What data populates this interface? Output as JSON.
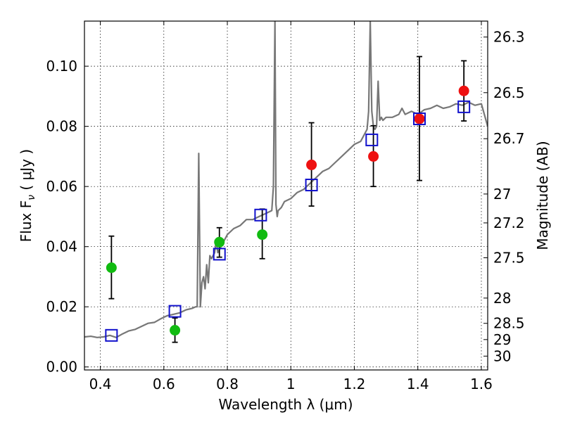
{
  "chart_data": {
    "type": "scatter",
    "xlabel": "Wavelength  λ (μm)",
    "ylabel": "Flux  F",
    "ylabel_sub": "ν",
    "ylabel_unit": "  ( μJy )",
    "y2label": "Magnitude (AB)",
    "xlim": [
      0.35,
      1.62
    ],
    "ylim": [
      -0.001,
      0.115
    ],
    "grid": true,
    "x_ticks": [
      0.4,
      0.6,
      0.8,
      1.0,
      1.2,
      1.4,
      1.6
    ],
    "x_tick_labels": [
      "0.4",
      "0.6",
      "0.8",
      "1",
      "1.2",
      "1.4",
      "1.6"
    ],
    "y_ticks": [
      0.0,
      0.02,
      0.04,
      0.06,
      0.08,
      0.1
    ],
    "y_tick_labels": [
      "0.00",
      "0.02",
      "0.04",
      "0.06",
      "0.08",
      "0.10"
    ],
    "y2_ticks": [
      {
        "label": "26.3",
        "flux": 0.1097
      },
      {
        "label": "26.5",
        "flux": 0.0912
      },
      {
        "label": "26.7",
        "flux": 0.0759
      },
      {
        "label": "27",
        "flux": 0.0575
      },
      {
        "label": "27.2",
        "flux": 0.0479
      },
      {
        "label": "27.5",
        "flux": 0.0363
      },
      {
        "label": "28",
        "flux": 0.0229
      },
      {
        "label": "28.5",
        "flux": 0.0145
      },
      {
        "label": "29",
        "flux": 0.0091
      },
      {
        "label": "30",
        "flux": 0.0036
      }
    ],
    "series": [
      {
        "kind": "line",
        "color": "#777777",
        "x": [
          0.35,
          0.37,
          0.39,
          0.41,
          0.43,
          0.45,
          0.47,
          0.49,
          0.51,
          0.53,
          0.55,
          0.57,
          0.59,
          0.61,
          0.63,
          0.65,
          0.67,
          0.69,
          0.7,
          0.705,
          0.71,
          0.715,
          0.72,
          0.725,
          0.73,
          0.735,
          0.74,
          0.745,
          0.75,
          0.76,
          0.765,
          0.77,
          0.78,
          0.79,
          0.8,
          0.82,
          0.84,
          0.86,
          0.88,
          0.9,
          0.92,
          0.94,
          0.945,
          0.95,
          0.953,
          0.957,
          0.96,
          0.97,
          0.98,
          1.0,
          1.02,
          1.04,
          1.06,
          1.08,
          1.1,
          1.12,
          1.14,
          1.16,
          1.18,
          1.2,
          1.22,
          1.24,
          1.245,
          1.25,
          1.255,
          1.26,
          1.265,
          1.27,
          1.275,
          1.28,
          1.285,
          1.29,
          1.3,
          1.32,
          1.34,
          1.35,
          1.36,
          1.38,
          1.4,
          1.42,
          1.44,
          1.46,
          1.48,
          1.5,
          1.52,
          1.54,
          1.56,
          1.58,
          1.6,
          1.62
        ],
        "y": [
          0.01,
          0.0102,
          0.0098,
          0.01,
          0.0105,
          0.0098,
          0.011,
          0.012,
          0.0125,
          0.0135,
          0.0145,
          0.0148,
          0.016,
          0.017,
          0.0175,
          0.018,
          0.019,
          0.0195,
          0.02,
          0.02,
          0.071,
          0.02,
          0.028,
          0.03,
          0.026,
          0.034,
          0.028,
          0.037,
          0.036,
          0.038,
          0.042,
          0.038,
          0.04,
          0.042,
          0.044,
          0.046,
          0.047,
          0.049,
          0.049,
          0.05,
          0.051,
          0.052,
          0.06,
          0.115,
          0.054,
          0.05,
          0.052,
          0.053,
          0.055,
          0.056,
          0.058,
          0.059,
          0.061,
          0.063,
          0.065,
          0.066,
          0.068,
          0.07,
          0.072,
          0.074,
          0.075,
          0.079,
          0.085,
          0.115,
          0.085,
          0.08,
          0.079,
          0.08,
          0.095,
          0.082,
          0.083,
          0.082,
          0.083,
          0.083,
          0.084,
          0.086,
          0.084,
          0.085,
          0.084,
          0.0855,
          0.086,
          0.087,
          0.086,
          0.0865,
          0.0875,
          0.087,
          0.088,
          0.087,
          0.0875,
          0.08
        ]
      },
      {
        "kind": "squares",
        "color": "#1111cc",
        "x": [
          0.435,
          0.635,
          0.775,
          0.905,
          1.065,
          1.255,
          1.405,
          1.545
        ],
        "y": [
          0.0105,
          0.0185,
          0.0375,
          0.0505,
          0.0605,
          0.0755,
          0.0825,
          0.0865
        ]
      },
      {
        "kind": "points",
        "color": "#11bb11",
        "x": [
          0.435,
          0.635,
          0.775,
          0.91
        ],
        "y": [
          0.033,
          0.0122,
          0.0415,
          0.044
        ],
        "yerr_low": [
          0.0227,
          0.0082,
          0.0365,
          0.036
        ],
        "yerr_high": [
          0.0435,
          0.0163,
          0.0463,
          0.0525
        ]
      },
      {
        "kind": "points",
        "color": "#ee1111",
        "x": [
          1.065,
          1.26,
          1.405,
          1.545
        ],
        "y": [
          0.0672,
          0.07,
          0.0825,
          0.0918
        ],
        "yerr_low": [
          0.0535,
          0.06,
          0.062,
          0.0818
        ],
        "yerr_high": [
          0.0812,
          0.0802,
          0.1032,
          0.1018
        ]
      }
    ]
  }
}
